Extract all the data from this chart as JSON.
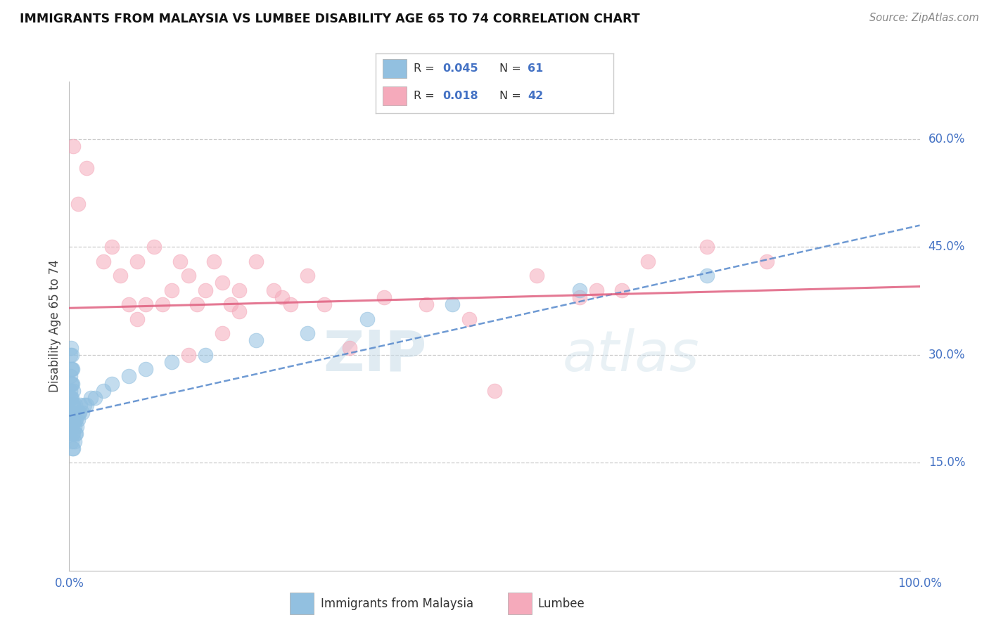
{
  "title": "IMMIGRANTS FROM MALAYSIA VS LUMBEE DISABILITY AGE 65 TO 74 CORRELATION CHART",
  "source_text": "Source: ZipAtlas.com",
  "ylabel": "Disability Age 65 to 74",
  "xmin": 0.0,
  "xmax": 1.0,
  "ymin": 0.0,
  "ymax": 0.68,
  "yticks": [
    0.15,
    0.3,
    0.45,
    0.6
  ],
  "ytick_labels": [
    "15.0%",
    "30.0%",
    "45.0%",
    "60.0%"
  ],
  "xticks": [
    0.0,
    1.0
  ],
  "xtick_labels": [
    "0.0%",
    "100.0%"
  ],
  "grid_color": "#cccccc",
  "background_color": "#ffffff",
  "blue_color": "#92C0E0",
  "pink_color": "#F5AABB",
  "blue_line_color": "#5588CC",
  "pink_line_color": "#E06080",
  "legend_r_blue": "0.045",
  "legend_n_blue": "61",
  "legend_r_pink": "0.018",
  "legend_n_pink": "42",
  "legend_label_blue": "Immigrants from Malaysia",
  "legend_label_pink": "Lumbee",
  "blue_scatter_x": [
    0.001,
    0.001,
    0.001,
    0.001,
    0.001,
    0.001,
    0.002,
    0.002,
    0.002,
    0.002,
    0.002,
    0.002,
    0.002,
    0.003,
    0.003,
    0.003,
    0.003,
    0.003,
    0.003,
    0.003,
    0.004,
    0.004,
    0.004,
    0.004,
    0.004,
    0.004,
    0.005,
    0.005,
    0.005,
    0.005,
    0.005,
    0.006,
    0.006,
    0.006,
    0.007,
    0.007,
    0.007,
    0.008,
    0.008,
    0.009,
    0.01,
    0.011,
    0.012,
    0.013,
    0.015,
    0.018,
    0.02,
    0.025,
    0.03,
    0.04,
    0.05,
    0.07,
    0.09,
    0.12,
    0.16,
    0.22,
    0.28,
    0.35,
    0.45,
    0.6,
    0.75
  ],
  "blue_scatter_y": [
    0.21,
    0.22,
    0.24,
    0.25,
    0.27,
    0.3,
    0.2,
    0.21,
    0.22,
    0.24,
    0.26,
    0.28,
    0.31,
    0.18,
    0.2,
    0.22,
    0.24,
    0.26,
    0.28,
    0.3,
    0.17,
    0.19,
    0.21,
    0.23,
    0.26,
    0.28,
    0.17,
    0.19,
    0.21,
    0.23,
    0.25,
    0.18,
    0.2,
    0.22,
    0.19,
    0.21,
    0.23,
    0.19,
    0.21,
    0.2,
    0.21,
    0.22,
    0.22,
    0.23,
    0.22,
    0.23,
    0.23,
    0.24,
    0.24,
    0.25,
    0.26,
    0.27,
    0.28,
    0.29,
    0.3,
    0.32,
    0.33,
    0.35,
    0.37,
    0.39,
    0.41
  ],
  "pink_scatter_x": [
    0.005,
    0.01,
    0.02,
    0.04,
    0.05,
    0.06,
    0.07,
    0.08,
    0.09,
    0.1,
    0.11,
    0.12,
    0.13,
    0.14,
    0.15,
    0.16,
    0.17,
    0.18,
    0.19,
    0.2,
    0.22,
    0.24,
    0.26,
    0.28,
    0.3,
    0.33,
    0.37,
    0.42,
    0.47,
    0.55,
    0.62,
    0.68,
    0.75,
    0.82,
    0.18,
    0.08,
    0.14,
    0.2,
    0.25,
    0.5,
    0.6,
    0.65
  ],
  "pink_scatter_y": [
    0.59,
    0.51,
    0.56,
    0.43,
    0.45,
    0.41,
    0.37,
    0.43,
    0.37,
    0.45,
    0.37,
    0.39,
    0.43,
    0.41,
    0.37,
    0.39,
    0.43,
    0.4,
    0.37,
    0.39,
    0.43,
    0.39,
    0.37,
    0.41,
    0.37,
    0.31,
    0.38,
    0.37,
    0.35,
    0.41,
    0.39,
    0.43,
    0.45,
    0.43,
    0.33,
    0.35,
    0.3,
    0.36,
    0.38,
    0.25,
    0.38,
    0.39
  ],
  "blue_trend_x": [
    0.0,
    1.0
  ],
  "blue_trend_y": [
    0.215,
    0.48
  ],
  "pink_trend_x": [
    0.0,
    1.0
  ],
  "pink_trend_y": [
    0.365,
    0.395
  ],
  "watermark_zip": "ZIP",
  "watermark_atlas": "atlas"
}
